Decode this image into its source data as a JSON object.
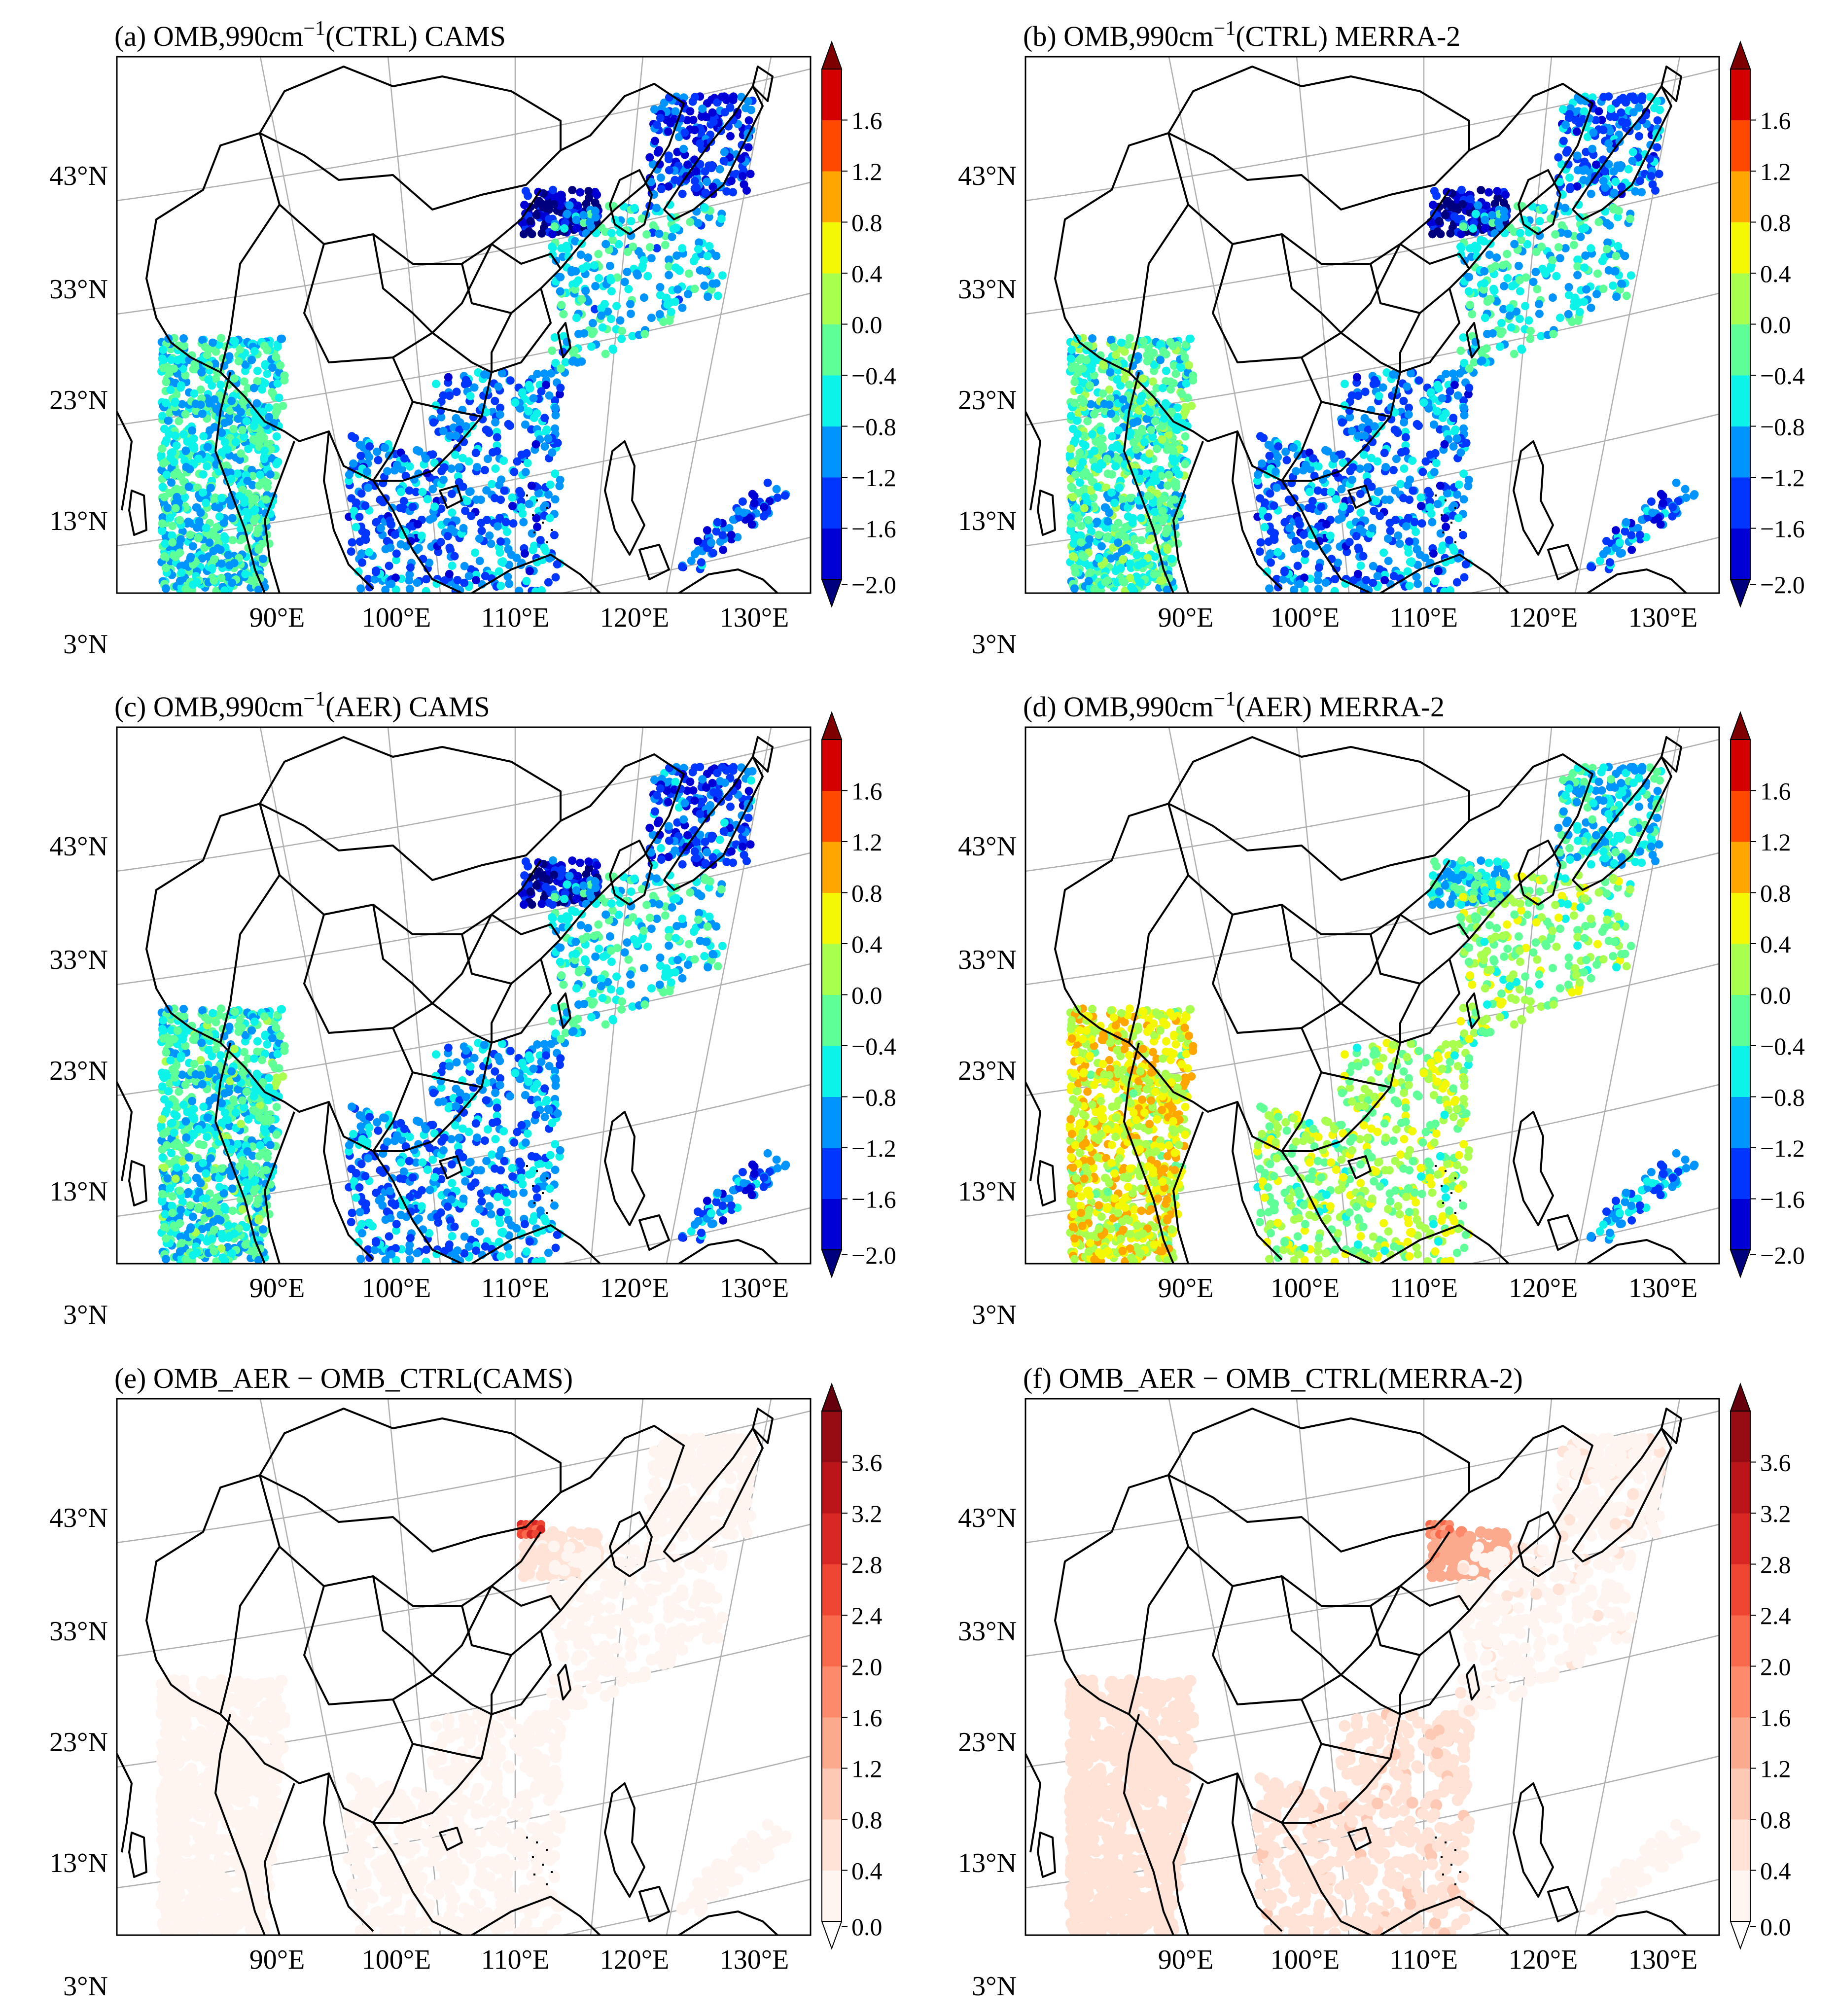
{
  "panels": [
    {
      "id": "a",
      "title_pre": "(a) OMB,990cm",
      "title_sup": "−1",
      "title_post": "(CTRL) CAMS",
      "colorbar": "omb",
      "field": "ctrl_cams"
    },
    {
      "id": "b",
      "title_pre": "(b) OMB,990cm",
      "title_sup": "−1",
      "title_post": "(CTRL) MERRA-2",
      "colorbar": "omb",
      "field": "ctrl_merra"
    },
    {
      "id": "c",
      "title_pre": "(c) OMB,990cm",
      "title_sup": "−1",
      "title_post": "(AER) CAMS",
      "colorbar": "omb",
      "field": "aer_cams"
    },
    {
      "id": "d",
      "title_pre": "(d) OMB,990cm",
      "title_sup": "−1",
      "title_post": "(AER) MERRA-2",
      "colorbar": "omb",
      "field": "aer_merra"
    },
    {
      "id": "e",
      "title_pre": "(e) OMB_AER − OMB_CTRL(CAMS)",
      "title_sup": "",
      "title_post": "",
      "colorbar": "diff",
      "field": "diff_cams"
    },
    {
      "id": "f",
      "title_pre": "(f) OMB_AER − OMB_CTRL(MERRA-2)",
      "title_sup": "",
      "title_post": "",
      "colorbar": "diff",
      "field": "diff_merra"
    }
  ],
  "lat_labels": [
    "43°N",
    "33°N",
    "23°N",
    "13°N",
    "3°N"
  ],
  "lon_labels": [
    "90°E",
    "100°E",
    "110°E",
    "120°E",
    "130°E"
  ],
  "colorbars": {
    "omb": {
      "ticks": [
        "1.6",
        "1.2",
        "0.8",
        "0.4",
        "0.0",
        "−0.4",
        "−0.8",
        "−1.2",
        "−1.6",
        "−2.0"
      ],
      "tick_values": [
        1.6,
        1.2,
        0.8,
        0.4,
        0.0,
        -0.4,
        -0.8,
        -1.2,
        -1.6,
        -2.0
      ],
      "range": [
        -2.0,
        2.0
      ],
      "extend": "both",
      "colors": [
        "#00007f",
        "#0000d6",
        "#0036ff",
        "#0094ff",
        "#0cf4ea",
        "#5fff98",
        "#a9ff4d",
        "#f4f802",
        "#ffa600",
        "#ff4800",
        "#d40000",
        "#7f0000"
      ]
    },
    "diff": {
      "ticks": [
        "3.6",
        "3.2",
        "2.8",
        "2.4",
        "2.0",
        "1.6",
        "1.2",
        "0.8",
        "0.4",
        "0.0"
      ],
      "tick_values": [
        3.6,
        3.2,
        2.8,
        2.4,
        2.0,
        1.6,
        1.2,
        0.8,
        0.4,
        0.0
      ],
      "range": [
        0.0,
        4.0
      ],
      "extend": "max",
      "colors": [
        "#fff5f0",
        "#fee3d6",
        "#fdc9b4",
        "#fcaa8e",
        "#fc8a6b",
        "#f9694c",
        "#ef4533",
        "#d92723",
        "#bb151a",
        "#970b13",
        "#67000d"
      ]
    }
  },
  "map_data": {
    "projection": "Lambert-conformal (approx.)",
    "lon_range": [
      80,
      132
    ],
    "lat_range": [
      0,
      48
    ],
    "mean_values": {
      "ctrl_cams": {
        "bay_of_bengal": -0.6,
        "south_china_sea": -1.1,
        "yellow_sea": -1.9,
        "japan": -1.4,
        "east_china_sea": -0.7,
        "west_pacific": -1.3
      },
      "ctrl_merra": {
        "bay_of_bengal": -0.4,
        "south_china_sea": -1.1,
        "yellow_sea": -1.8,
        "japan": -1.1,
        "east_china_sea": -0.6,
        "west_pacific": -1.2
      },
      "aer_cams": {
        "bay_of_bengal": -0.5,
        "south_china_sea": -1.0,
        "yellow_sea": -1.7,
        "japan": -1.3,
        "east_china_sea": -0.6,
        "west_pacific": -1.2
      },
      "aer_merra": {
        "bay_of_bengal": 0.5,
        "south_china_sea": 0.1,
        "yellow_sea": -0.6,
        "japan": -0.6,
        "east_china_sea": 0.0,
        "west_pacific": -1.0
      },
      "diff_cams": {
        "bay_of_bengal": 0.15,
        "south_china_sea": 0.15,
        "yellow_sea": 0.5,
        "japan": 0.1,
        "east_china_sea": 0.1,
        "west_pacific": 0.1,
        "beijing_hotspot": 3.0
      },
      "diff_merra": {
        "bay_of_bengal": 0.6,
        "south_china_sea": 0.7,
        "yellow_sea": 1.5,
        "japan": 0.3,
        "east_china_sea": 0.3,
        "west_pacific": 0.1,
        "beijing_hotspot": 2.2
      }
    }
  }
}
